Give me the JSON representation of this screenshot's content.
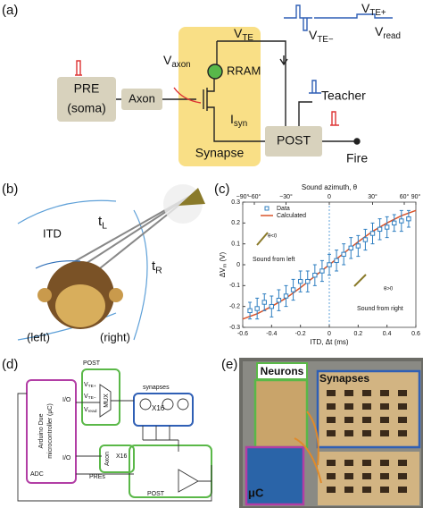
{
  "panel_a": {
    "label": "(a)",
    "pre": "PRE",
    "pre_sub": "(soma)",
    "axon": "Axon",
    "v_axon": {
      "main": "V",
      "sub": "axon"
    },
    "v_te": {
      "main": "V",
      "sub": "TE"
    },
    "rram": "RRAM",
    "i_syn": {
      "main": "I",
      "sub": "syn"
    },
    "synapse": "Synapse",
    "post": "POST",
    "teacher": "Teacher",
    "fire": "Fire",
    "v_te_plus": {
      "main": "V",
      "sub": "TE+"
    },
    "v_te_minus": {
      "main": "V",
      "sub": "TE−"
    },
    "v_read": {
      "main": "V",
      "sub": "read"
    }
  },
  "panel_b": {
    "label": "(b)",
    "itd": "ITD",
    "t_l": {
      "main": "t",
      "sub": "L"
    },
    "t_r": {
      "main": "t",
      "sub": "R"
    },
    "left": "(left)",
    "right": "(right)"
  },
  "panel_c": {
    "label": "(c)"
  },
  "chart_data": {
    "type": "errorbar",
    "x2label": "Sound azimuth, θ",
    "xlabel": "ITD, Δt (ms)",
    "ylabel": {
      "main": "ΔV",
      "sub": "m",
      "tail": " (V)"
    },
    "xlim": [
      -0.6,
      0.6
    ],
    "xticks": [
      -0.6,
      -0.4,
      -0.2,
      0,
      0.2,
      0.4,
      0.6
    ],
    "ylim": [
      -0.3,
      0.3
    ],
    "yticks": [
      -0.3,
      -0.2,
      -0.1,
      0,
      0.1,
      0.2,
      0.3
    ],
    "x2lim": [
      -90,
      90
    ],
    "x2ticks": [
      {
        "value": -90,
        "label": "−90°"
      },
      {
        "value": -60,
        "label": "−60°"
      },
      {
        "value": -30,
        "label": "−30°"
      },
      0,
      {
        "value": 30,
        "label": "30°"
      },
      {
        "value": 60,
        "label": "60°"
      },
      {
        "value": 90,
        "label": "90°"
      }
    ],
    "series": [
      {
        "name": "Data",
        "color": "#2f7fc1",
        "x": [
          -0.55,
          -0.5,
          -0.45,
          -0.4,
          -0.35,
          -0.3,
          -0.25,
          -0.2,
          -0.15,
          -0.1,
          -0.05,
          0,
          0.05,
          0.1,
          0.15,
          0.2,
          0.25,
          0.3,
          0.35,
          0.4,
          0.45,
          0.5,
          0.55
        ],
        "values": [
          -0.22,
          -0.21,
          -0.18,
          -0.2,
          -0.17,
          -0.15,
          -0.12,
          -0.08,
          -0.08,
          -0.05,
          -0.03,
          0.0,
          0.02,
          0.05,
          0.08,
          0.09,
          0.12,
          0.15,
          0.17,
          0.18,
          0.2,
          0.21,
          0.22
        ],
        "errors": [
          0.04,
          0.05,
          0.04,
          0.05,
          0.05,
          0.05,
          0.05,
          0.05,
          0.05,
          0.05,
          0.05,
          0.05,
          0.05,
          0.05,
          0.05,
          0.05,
          0.05,
          0.05,
          0.05,
          0.05,
          0.04,
          0.05,
          0.04
        ]
      },
      {
        "name": "Calculated",
        "color": "#d9542b",
        "x": [
          -0.6,
          -0.5,
          -0.4,
          -0.3,
          -0.2,
          -0.1,
          0,
          0.1,
          0.2,
          0.3,
          0.4,
          0.5,
          0.6
        ],
        "values": [
          -0.26,
          -0.235,
          -0.2,
          -0.16,
          -0.11,
          -0.055,
          0,
          0.055,
          0.11,
          0.16,
          0.2,
          0.235,
          0.26
        ]
      }
    ],
    "annotations": [
      "Sound from left",
      "Sound from right",
      "θ<0",
      "θ>0"
    ]
  },
  "panel_d": {
    "label": "(d)",
    "mcu_line1": "Arduino Due",
    "mcu_line2": "microcontroller (μC)",
    "adc": "ADC",
    "io_top": "I/O",
    "io_bottom": "I/O",
    "post_top": "POST",
    "mux": "MUX",
    "v_te_plus": {
      "main": "V",
      "sub": "TE+"
    },
    "v_te_minus": {
      "main": "V",
      "sub": "TE−"
    },
    "v_read": {
      "main": "V",
      "sub": "read"
    },
    "synapses": "synapses",
    "x16_syn": "X16",
    "x16_axon": "X16",
    "axon": "Axon",
    "pres": "PREs",
    "post_bottom": "POST"
  },
  "panel_e": {
    "label": "(e)",
    "neurons": "Neurons",
    "synapses": "Synapses",
    "uc": "μC"
  }
}
